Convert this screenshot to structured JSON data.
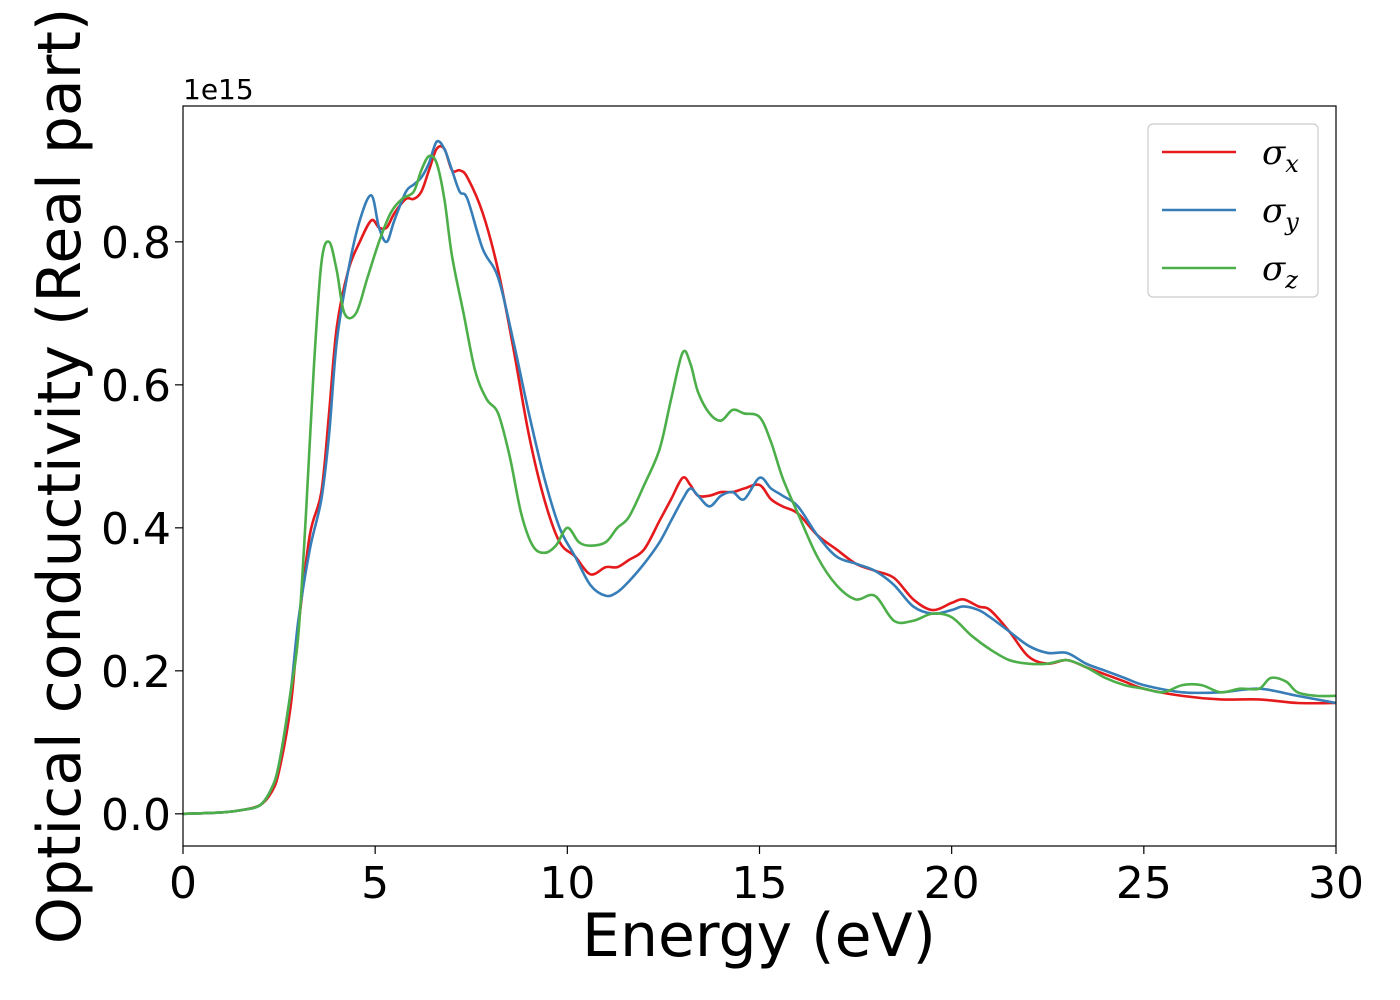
{
  "chart_data": {
    "type": "line",
    "xlabel": "Energy (eV)",
    "ylabel": "Optical conductivity (Real part)",
    "offset_text": "1e15",
    "xlim": [
      0,
      30
    ],
    "ylim": [
      -0.045,
      0.99
    ],
    "xticks": [
      0,
      5,
      10,
      15,
      20,
      25,
      30
    ],
    "yticks": [
      0.0,
      0.2,
      0.4,
      0.6,
      0.8
    ],
    "xtick_labels": [
      "0",
      "5",
      "10",
      "15",
      "20",
      "25",
      "30"
    ],
    "ytick_labels": [
      "0.0",
      "0.2",
      "0.4",
      "0.6",
      "0.8"
    ],
    "grid": false,
    "legend_position": "top-right",
    "series": [
      {
        "name": "σx",
        "symbol": "σ",
        "subscript": "x",
        "color": "#e41a1c",
        "x": [
          0,
          1,
          1.5,
          2,
          2.3,
          2.5,
          2.8,
          3,
          3.3,
          3.6,
          3.8,
          4,
          4.3,
          4.6,
          4.9,
          5.1,
          5.3,
          5.5,
          5.8,
          6,
          6.2,
          6.4,
          6.6,
          6.8,
          7,
          7.2,
          7.4,
          7.8,
          8.2,
          8.6,
          9,
          9.4,
          9.8,
          10.2,
          10.6,
          11,
          11.3,
          11.6,
          12,
          12.4,
          12.7,
          13,
          13.2,
          13.4,
          13.7,
          14,
          14.3,
          14.6,
          15,
          15.3,
          15.6,
          16,
          16.5,
          17,
          17.5,
          18,
          18.5,
          19,
          19.5,
          20,
          20.3,
          20.7,
          21,
          21.5,
          22,
          22.5,
          23,
          23.5,
          24,
          24.5,
          25,
          26,
          27,
          28,
          29,
          30
        ],
        "y": [
          0,
          0.002,
          0.005,
          0.012,
          0.03,
          0.06,
          0.15,
          0.26,
          0.39,
          0.45,
          0.56,
          0.68,
          0.76,
          0.8,
          0.83,
          0.82,
          0.82,
          0.84,
          0.86,
          0.86,
          0.87,
          0.9,
          0.93,
          0.93,
          0.9,
          0.9,
          0.89,
          0.84,
          0.76,
          0.65,
          0.53,
          0.44,
          0.38,
          0.36,
          0.335,
          0.345,
          0.345,
          0.355,
          0.37,
          0.41,
          0.44,
          0.47,
          0.46,
          0.445,
          0.445,
          0.45,
          0.45,
          0.455,
          0.46,
          0.44,
          0.43,
          0.42,
          0.39,
          0.37,
          0.35,
          0.34,
          0.33,
          0.3,
          0.285,
          0.295,
          0.3,
          0.29,
          0.285,
          0.255,
          0.22,
          0.21,
          0.215,
          0.205,
          0.195,
          0.185,
          0.175,
          0.165,
          0.16,
          0.16,
          0.155,
          0.155
        ]
      },
      {
        "name": "σy",
        "symbol": "σ",
        "subscript": "y",
        "color": "#377eb8",
        "x": [
          0,
          1,
          1.5,
          2,
          2.3,
          2.5,
          2.8,
          3,
          3.3,
          3.6,
          3.8,
          4,
          4.3,
          4.6,
          4.9,
          5.1,
          5.3,
          5.5,
          5.8,
          6,
          6.2,
          6.4,
          6.6,
          6.8,
          7,
          7.2,
          7.4,
          7.8,
          8.2,
          8.6,
          9,
          9.4,
          9.8,
          10.2,
          10.6,
          11,
          11.3,
          11.6,
          12,
          12.4,
          12.7,
          13,
          13.2,
          13.4,
          13.7,
          14,
          14.3,
          14.6,
          15,
          15.3,
          15.6,
          16,
          16.5,
          17,
          17.5,
          18,
          18.5,
          19,
          19.5,
          20,
          20.3,
          20.7,
          21,
          21.5,
          22,
          22.5,
          23,
          23.5,
          24,
          24.5,
          25,
          26,
          27,
          28,
          29,
          30
        ],
        "y": [
          0,
          0.002,
          0.005,
          0.012,
          0.035,
          0.07,
          0.17,
          0.27,
          0.37,
          0.44,
          0.53,
          0.66,
          0.76,
          0.83,
          0.865,
          0.82,
          0.8,
          0.83,
          0.87,
          0.88,
          0.89,
          0.91,
          0.94,
          0.93,
          0.9,
          0.87,
          0.86,
          0.79,
          0.75,
          0.66,
          0.56,
          0.47,
          0.4,
          0.36,
          0.32,
          0.305,
          0.31,
          0.325,
          0.35,
          0.38,
          0.41,
          0.44,
          0.455,
          0.445,
          0.43,
          0.445,
          0.45,
          0.44,
          0.47,
          0.455,
          0.445,
          0.43,
          0.39,
          0.36,
          0.35,
          0.34,
          0.32,
          0.29,
          0.28,
          0.285,
          0.29,
          0.285,
          0.275,
          0.255,
          0.235,
          0.225,
          0.225,
          0.21,
          0.2,
          0.19,
          0.18,
          0.17,
          0.17,
          0.175,
          0.165,
          0.155
        ]
      },
      {
        "name": "σz",
        "symbol": "σ",
        "subscript": "z",
        "color": "#4daf4a",
        "x": [
          0,
          1,
          1.5,
          2,
          2.3,
          2.5,
          2.8,
          3,
          3.2,
          3.4,
          3.6,
          3.8,
          4,
          4.2,
          4.5,
          4.8,
          5.1,
          5.4,
          5.7,
          6,
          6.2,
          6.4,
          6.6,
          6.8,
          7,
          7.3,
          7.6,
          7.9,
          8.2,
          8.5,
          8.8,
          9.1,
          9.4,
          9.7,
          10,
          10.3,
          10.6,
          11,
          11.3,
          11.6,
          12,
          12.4,
          12.7,
          13,
          13.2,
          13.4,
          13.7,
          14,
          14.3,
          14.6,
          15,
          15.3,
          15.6,
          16,
          16.5,
          17,
          17.5,
          18,
          18.5,
          19,
          19.5,
          20,
          20.5,
          21,
          21.5,
          22,
          22.5,
          23,
          23.5,
          24,
          24.5,
          25,
          25.5,
          26,
          26.5,
          27,
          27.5,
          28,
          28.3,
          28.7,
          29,
          29.5,
          30
        ],
        "y": [
          0,
          0.002,
          0.005,
          0.012,
          0.035,
          0.07,
          0.17,
          0.25,
          0.42,
          0.62,
          0.77,
          0.8,
          0.76,
          0.7,
          0.7,
          0.75,
          0.8,
          0.84,
          0.86,
          0.87,
          0.9,
          0.92,
          0.91,
          0.86,
          0.78,
          0.7,
          0.62,
          0.58,
          0.56,
          0.5,
          0.42,
          0.375,
          0.365,
          0.375,
          0.4,
          0.38,
          0.375,
          0.38,
          0.4,
          0.415,
          0.46,
          0.51,
          0.58,
          0.645,
          0.63,
          0.59,
          0.56,
          0.55,
          0.565,
          0.56,
          0.555,
          0.52,
          0.47,
          0.42,
          0.36,
          0.32,
          0.3,
          0.305,
          0.27,
          0.27,
          0.28,
          0.275,
          0.25,
          0.23,
          0.215,
          0.21,
          0.21,
          0.215,
          0.205,
          0.19,
          0.18,
          0.175,
          0.17,
          0.18,
          0.18,
          0.17,
          0.175,
          0.175,
          0.19,
          0.185,
          0.17,
          0.165,
          0.165
        ]
      }
    ]
  }
}
